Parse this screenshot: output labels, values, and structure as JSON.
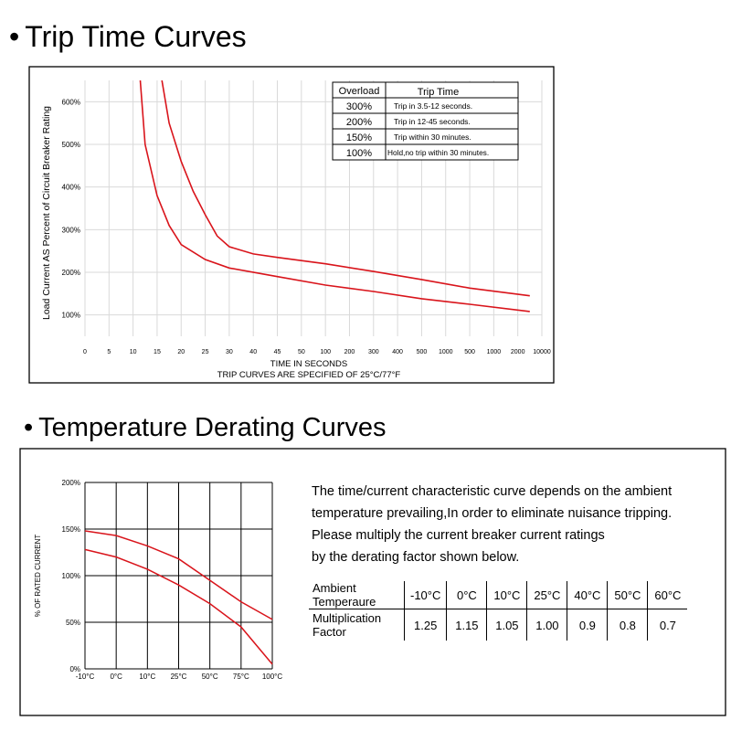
{
  "headings": {
    "trip": "Trip Time Curves",
    "temp": "Temperature Derating Curves",
    "bullet": "•"
  },
  "colors": {
    "curve": "#d9141b",
    "grid": "#d9d9d9",
    "frame": "#000000"
  },
  "chart_data": [
    {
      "type": "line",
      "ylabel": "Load Current AS Percent of Circuit Breaker Rating",
      "xlabel": "TIME IN SECONDS",
      "note": "TRIP CURVES ARE SPECIFIED OF 25°C/77°F",
      "y_ticks": [
        "100%",
        "200%",
        "300%",
        "400%",
        "500%",
        "600%"
      ],
      "y_values": [
        100,
        200,
        300,
        400,
        500,
        600
      ],
      "x_ticks": [
        "0",
        "5",
        "10",
        "15",
        "20",
        "25",
        "30",
        "40",
        "45",
        "50",
        "100",
        "200",
        "300",
        "400",
        "500",
        "1000",
        "500",
        "1000",
        "2000",
        "10000"
      ],
      "grid": true,
      "series": [
        {
          "x_index": [
            2.3,
            2.5,
            3,
            3.5,
            4,
            5,
            6,
            8,
            10,
            12,
            14,
            16,
            18.5
          ],
          "y": [
            650,
            500,
            380,
            310,
            265,
            230,
            210,
            190,
            170,
            155,
            138,
            125,
            108
          ]
        },
        {
          "x_index": [
            3.2,
            3.5,
            4,
            4.5,
            5,
            5.5,
            6,
            7,
            8,
            10,
            12,
            14,
            16,
            18.5
          ],
          "y": [
            650,
            550,
            460,
            390,
            335,
            285,
            260,
            243,
            235,
            220,
            202,
            183,
            163,
            145
          ]
        }
      ],
      "legend_table": {
        "headers": [
          "Overload",
          "Trip Time"
        ],
        "rows": [
          [
            "300%",
            "Trip in 3.5-12 seconds."
          ],
          [
            "200%",
            "Trip in 12-45 seconds."
          ],
          [
            "150%",
            "Trip within 30 minutes."
          ],
          [
            "100%",
            "Hold,no trip within 30 minutes."
          ]
        ]
      }
    },
    {
      "type": "line",
      "ylabel": "% OF RATED CURRENT",
      "y_ticks": [
        "0%",
        "50%",
        "100%",
        "150%",
        "200%"
      ],
      "y_values": [
        0,
        50,
        100,
        150,
        200
      ],
      "x_ticks": [
        "-10°C",
        "0°C",
        "10°C",
        "25°C",
        "50°C",
        "75°C",
        "100°C"
      ],
      "grid": true,
      "series": [
        {
          "x_index": [
            0,
            1,
            2,
            3,
            4,
            5,
            6
          ],
          "y": [
            148,
            143,
            132,
            118,
            95,
            72,
            53
          ]
        },
        {
          "x_index": [
            0,
            1,
            2,
            3,
            4,
            5,
            6
          ],
          "y": [
            128,
            120,
            107,
            90,
            70,
            45,
            5
          ]
        }
      ]
    }
  ],
  "derating": {
    "paragraph": [
      "The time/current characteristic curve depends on the ambient",
      "temperature prevailing,In order to eliminate nuisance tripping.",
      "Please multiply the current breaker current ratings",
      "by the derating factor shown below."
    ],
    "row1_label": [
      "Ambient",
      "Temperaure"
    ],
    "row2_label": [
      "Multiplication",
      "Factor"
    ],
    "temps": [
      "-10°C",
      "0°C",
      "10°C",
      "25°C",
      "40°C",
      "50°C",
      "60°C"
    ],
    "factors": [
      "1.25",
      "1.15",
      "1.05",
      "1.00",
      "0.9",
      "0.8",
      "0.7"
    ]
  }
}
